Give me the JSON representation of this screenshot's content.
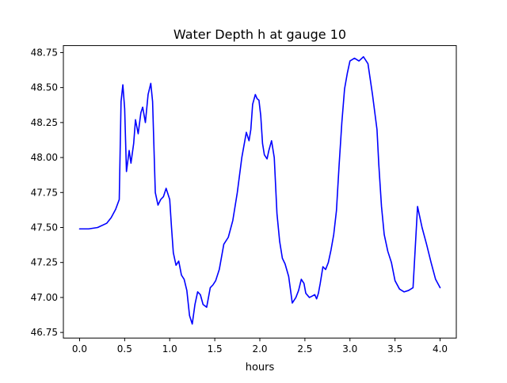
{
  "chart_data": {
    "type": "line",
    "title": "Water Depth h at gauge 10",
    "xlabel": "hours",
    "ylabel": "",
    "xlim": [
      -0.18,
      4.18
    ],
    "ylim": [
      46.71,
      48.8
    ],
    "xticks": [
      0.0,
      0.5,
      1.0,
      1.5,
      2.0,
      2.5,
      3.0,
      3.5,
      4.0
    ],
    "xtick_labels": [
      "0.0",
      "0.5",
      "1.0",
      "1.5",
      "2.0",
      "2.5",
      "3.0",
      "3.5",
      "4.0"
    ],
    "yticks": [
      46.75,
      47.0,
      47.25,
      47.5,
      47.75,
      48.0,
      48.25,
      48.5,
      48.75
    ],
    "ytick_labels": [
      "46.75",
      "47.00",
      "47.25",
      "47.50",
      "47.75",
      "48.00",
      "48.25",
      "48.50",
      "48.75"
    ],
    "grid": false,
    "series": [
      {
        "color": "#0000ff",
        "x": [
          0.0,
          0.1,
          0.2,
          0.3,
          0.35,
          0.4,
          0.44,
          0.46,
          0.48,
          0.5,
          0.52,
          0.55,
          0.57,
          0.6,
          0.62,
          0.65,
          0.68,
          0.7,
          0.73,
          0.76,
          0.79,
          0.81,
          0.84,
          0.87,
          0.9,
          0.93,
          0.96,
          1.0,
          1.02,
          1.04,
          1.07,
          1.1,
          1.13,
          1.16,
          1.19,
          1.22,
          1.25,
          1.28,
          1.31,
          1.34,
          1.37,
          1.41,
          1.45,
          1.48,
          1.51,
          1.55,
          1.6,
          1.65,
          1.7,
          1.75,
          1.8,
          1.85,
          1.88,
          1.9,
          1.92,
          1.95,
          1.97,
          1.99,
          2.01,
          2.03,
          2.05,
          2.08,
          2.1,
          2.13,
          2.16,
          2.19,
          2.22,
          2.25,
          2.28,
          2.32,
          2.36,
          2.4,
          2.43,
          2.46,
          2.49,
          2.51,
          2.55,
          2.58,
          2.61,
          2.63,
          2.65,
          2.67,
          2.7,
          2.73,
          2.76,
          2.79,
          2.82,
          2.85,
          2.88,
          2.91,
          2.94,
          2.97,
          3.0,
          3.05,
          3.1,
          3.15,
          3.2,
          3.25,
          3.3,
          3.32,
          3.35,
          3.38,
          3.42,
          3.46,
          3.5,
          3.55,
          3.6,
          3.65,
          3.7,
          3.75,
          3.8,
          3.85,
          3.9,
          3.95,
          4.0
        ],
        "y": [
          47.49,
          47.49,
          47.5,
          47.53,
          47.57,
          47.63,
          47.7,
          48.4,
          48.52,
          48.35,
          47.9,
          48.05,
          47.96,
          48.1,
          48.27,
          48.17,
          48.32,
          48.36,
          48.25,
          48.45,
          48.53,
          48.4,
          47.75,
          47.66,
          47.7,
          47.72,
          47.78,
          47.7,
          47.5,
          47.32,
          47.23,
          47.26,
          47.16,
          47.13,
          47.05,
          46.87,
          46.81,
          46.95,
          47.04,
          47.02,
          46.95,
          46.93,
          47.07,
          47.09,
          47.12,
          47.2,
          47.38,
          47.43,
          47.55,
          47.75,
          48.0,
          48.18,
          48.12,
          48.2,
          48.38,
          48.45,
          48.42,
          48.41,
          48.3,
          48.1,
          48.02,
          47.99,
          48.05,
          48.12,
          48.0,
          47.6,
          47.4,
          47.28,
          47.24,
          47.15,
          46.96,
          47.0,
          47.05,
          47.13,
          47.1,
          47.03,
          47.0,
          47.01,
          47.02,
          46.99,
          47.03,
          47.1,
          47.22,
          47.2,
          47.25,
          47.34,
          47.45,
          47.62,
          47.95,
          48.25,
          48.49,
          48.6,
          48.69,
          48.71,
          48.69,
          48.72,
          48.67,
          48.45,
          48.2,
          47.95,
          47.65,
          47.45,
          47.33,
          47.25,
          47.12,
          47.06,
          47.04,
          47.05,
          47.07,
          47.65,
          47.5,
          47.38,
          47.25,
          47.13,
          47.07
        ]
      }
    ]
  }
}
